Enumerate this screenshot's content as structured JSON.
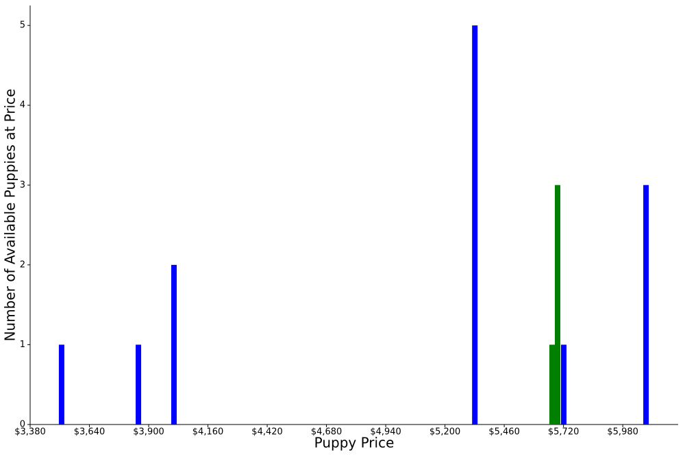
{
  "chart_data": {
    "type": "bar",
    "x_label": "Puppy Price",
    "y_label": "Number of Available Puppies at Price",
    "series": [
      {
        "color": "#0000ff",
        "x": [
          3518,
          3855,
          4011,
          5331,
          5721,
          6082
        ],
        "values": [
          1,
          1,
          2,
          5,
          1,
          3
        ]
      },
      {
        "color": "#008000",
        "x": [
          5670,
          5694
        ],
        "values": [
          1,
          3
        ]
      }
    ],
    "xlim": [
      3380,
      6223
    ],
    "xticks": [
      {
        "value": 3380,
        "label": "$3,380"
      },
      {
        "value": 3640,
        "label": "$3,640"
      },
      {
        "value": 3900,
        "label": "$3,900"
      },
      {
        "value": 4160,
        "label": "$4,160"
      },
      {
        "value": 4420,
        "label": "$4,420"
      },
      {
        "value": 4680,
        "label": "$4,680"
      },
      {
        "value": 4940,
        "label": "$4,940"
      },
      {
        "value": 5200,
        "label": "$5,200"
      },
      {
        "value": 5460,
        "label": "$5,460"
      },
      {
        "value": 5720,
        "label": "$5,720"
      },
      {
        "value": 5980,
        "label": "$5,980"
      }
    ],
    "ylim": [
      0,
      5.25
    ],
    "yticks": [
      0,
      1,
      2,
      3,
      4,
      5
    ],
    "grid": false
  }
}
